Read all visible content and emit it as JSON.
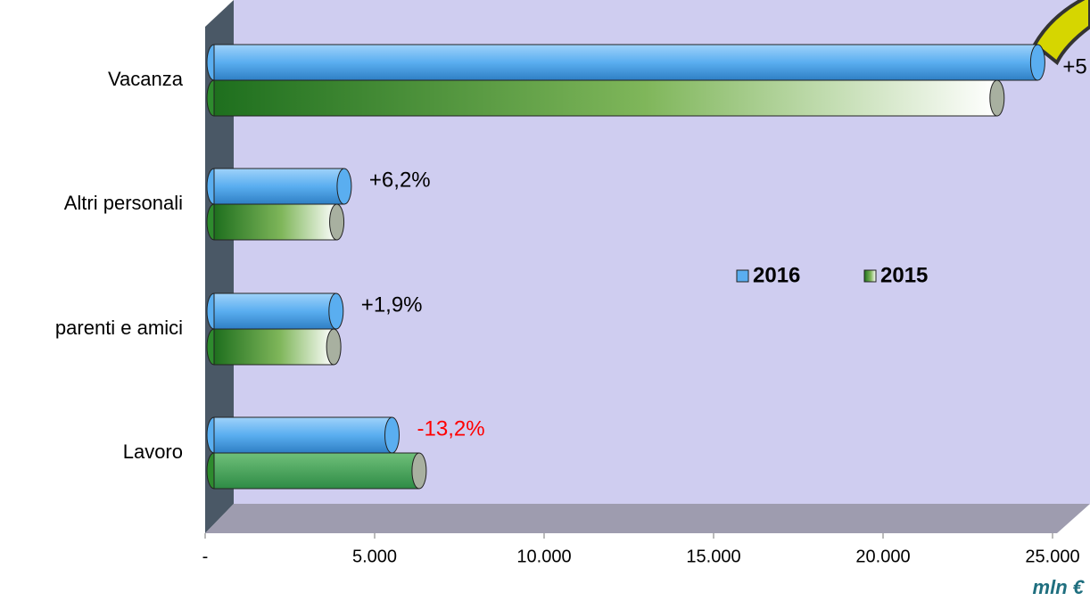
{
  "chart_data": {
    "type": "bar",
    "orientation": "horizontal",
    "categories": [
      "Vacanza",
      "Altri personali",
      "parenti e amici",
      "Lavoro"
    ],
    "series": [
      {
        "name": "2016",
        "color": "#5aaef0",
        "values": [
          24300,
          3840,
          3600,
          5250
        ]
      },
      {
        "name": "2015",
        "color": "#2e8b2e",
        "values": [
          23100,
          3620,
          3530,
          6050
        ]
      }
    ],
    "annotations": [
      "+5",
      "+6,2%",
      "+1,9%",
      "-13,2%"
    ],
    "annotation_colors": [
      "#000000",
      "#000000",
      "#000000",
      "#ff0000"
    ],
    "xlim": [
      0,
      25000
    ],
    "xticks": [
      {
        "value": 0,
        "label": "-"
      },
      {
        "value": 5000,
        "label": "5.000"
      },
      {
        "value": 10000,
        "label": "10.000"
      },
      {
        "value": 15000,
        "label": "15.000"
      },
      {
        "value": 20000,
        "label": "20.000"
      },
      {
        "value": 25000,
        "label": "25.000"
      }
    ],
    "xlabel": "mln €",
    "legend": "center-right"
  }
}
